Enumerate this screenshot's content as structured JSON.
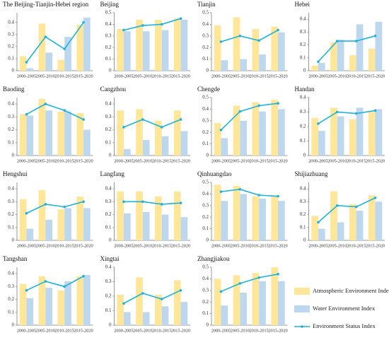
{
  "chart_data": {
    "type": "bar-line",
    "categories": [
      "2000-2005",
      "2005-2010",
      "2010-2015",
      "2015-2020"
    ],
    "series": [
      {
        "name": "Atmospheric Environment Index",
        "color": "#ffe699",
        "kind": "bar"
      },
      {
        "name": "Water Environment Index",
        "color": "#bdd7ee",
        "kind": "bar"
      },
      {
        "name": "Environment Status Index",
        "color": "#1fb2dc",
        "kind": "line"
      }
    ],
    "panels": [
      {
        "title": "The Beijing-Tianjin-Hebei region",
        "ylim": [
          0,
          0.48
        ],
        "yticks": [
          0,
          0.1,
          0.2,
          0.3,
          0.4
        ],
        "values": [
          [
            0.12,
            0.39,
            0.09,
            0.38
          ],
          [
            0.02,
            0.15,
            0.28,
            0.44
          ],
          [
            0.07,
            0.28,
            0.18,
            0.4
          ]
        ]
      },
      {
        "title": "Beijing",
        "ylim": [
          0,
          0.5
        ],
        "yticks": [
          0,
          0.1,
          0.2,
          0.3,
          0.4,
          0.5
        ],
        "values": [
          [
            0.36,
            0.44,
            0.44,
            0.45
          ],
          [
            0.34,
            0.34,
            0.35,
            0.44
          ],
          [
            0.35,
            0.39,
            0.4,
            0.45
          ]
        ]
      },
      {
        "title": "Tianjin",
        "ylim": [
          0,
          0.5
        ],
        "yticks": [
          0,
          0.1,
          0.2,
          0.3,
          0.4,
          0.5
        ],
        "values": [
          [
            0.39,
            0.46,
            0.36,
            0.38
          ],
          [
            0.09,
            0.1,
            0.14,
            0.33
          ],
          [
            0.25,
            0.3,
            0.26,
            0.35
          ]
        ]
      },
      {
        "title": "Hebei",
        "ylim": [
          0,
          0.45
        ],
        "yticks": [
          0,
          0.1,
          0.2,
          0.3,
          0.4
        ],
        "values": [
          [
            0.04,
            0.22,
            0.12,
            0.17
          ],
          [
            0.06,
            0.24,
            0.36,
            0.38
          ],
          [
            0.07,
            0.23,
            0.23,
            0.27
          ]
        ]
      },
      {
        "title": "Baoding",
        "ylim": [
          0,
          0.45
        ],
        "yticks": [
          0,
          0.1,
          0.2,
          0.3,
          0.4
        ],
        "values": [
          [
            0.32,
            0.44,
            0.34,
            0.33
          ],
          [
            0.31,
            0.35,
            0.34,
            0.2
          ],
          [
            0.32,
            0.4,
            0.35,
            0.28
          ]
        ]
      },
      {
        "title": "Cangzhou",
        "ylim": [
          0,
          0.45
        ],
        "yticks": [
          0,
          0.1,
          0.2,
          0.3,
          0.4
        ],
        "values": [
          [
            0.35,
            0.36,
            0.27,
            0.35
          ],
          [
            0.05,
            0.12,
            0.15,
            0.19
          ],
          [
            0.22,
            0.28,
            0.22,
            0.28
          ]
        ]
      },
      {
        "title": "Chengde",
        "ylim": [
          0,
          0.5
        ],
        "yticks": [
          0,
          0.1,
          0.2,
          0.3,
          0.4,
          0.5
        ],
        "values": [
          [
            0.28,
            0.43,
            0.46,
            0.48
          ],
          [
            0.15,
            0.3,
            0.38,
            0.4
          ],
          [
            0.22,
            0.38,
            0.43,
            0.45
          ]
        ]
      },
      {
        "title": "Handan",
        "ylim": [
          0,
          0.4
        ],
        "yticks": [
          0,
          0.1,
          0.2,
          0.3,
          0.4
        ],
        "values": [
          [
            0.26,
            0.33,
            0.25,
            0.3
          ],
          [
            0.17,
            0.27,
            0.33,
            0.32
          ],
          [
            0.22,
            0.3,
            0.29,
            0.31
          ]
        ]
      },
      {
        "title": "Hengshui",
        "ylim": [
          0,
          0.45
        ],
        "yticks": [
          0,
          0.1,
          0.2,
          0.3,
          0.4
        ],
        "values": [
          [
            0.32,
            0.39,
            0.24,
            0.34
          ],
          [
            0.09,
            0.16,
            0.25,
            0.25
          ],
          [
            0.21,
            0.28,
            0.26,
            0.3
          ]
        ]
      },
      {
        "title": "Langfang",
        "ylim": [
          0,
          0.45
        ],
        "yticks": [
          0,
          0.1,
          0.2,
          0.3,
          0.4
        ],
        "values": [
          [
            0.38,
            0.38,
            0.34,
            0.38
          ],
          [
            0.21,
            0.22,
            0.2,
            0.18
          ],
          [
            0.3,
            0.3,
            0.28,
            0.29
          ]
        ]
      },
      {
        "title": "Qinhuangdao",
        "ylim": [
          0,
          0.5
        ],
        "yticks": [
          0,
          0.1,
          0.2,
          0.3,
          0.4,
          0.5
        ],
        "values": [
          [
            0.48,
            0.47,
            0.38,
            0.38
          ],
          [
            0.34,
            0.4,
            0.36,
            0.34
          ],
          [
            0.42,
            0.44,
            0.39,
            0.38
          ]
        ]
      },
      {
        "title": "Shijiazhuang",
        "ylim": [
          0,
          0.45
        ],
        "yticks": [
          0,
          0.1,
          0.2,
          0.3,
          0.4
        ],
        "values": [
          [
            0.19,
            0.38,
            0.28,
            0.35
          ],
          [
            0.09,
            0.14,
            0.23,
            0.3
          ],
          [
            0.14,
            0.27,
            0.26,
            0.33
          ]
        ]
      },
      {
        "title": "Tangshan",
        "ylim": [
          0,
          0.45
        ],
        "yticks": [
          0,
          0.1,
          0.2,
          0.3,
          0.4
        ],
        "values": [
          [
            0.32,
            0.38,
            0.27,
            0.38
          ],
          [
            0.21,
            0.29,
            0.34,
            0.39
          ],
          [
            0.27,
            0.34,
            0.3,
            0.38
          ]
        ]
      },
      {
        "title": "Xingtai",
        "ylim": [
          0,
          0.4
        ],
        "yticks": [
          0,
          0.1,
          0.2,
          0.3,
          0.4
        ],
        "values": [
          [
            0.21,
            0.33,
            0.21,
            0.31
          ],
          [
            0.09,
            0.09,
            0.13,
            0.16
          ],
          [
            0.15,
            0.22,
            0.18,
            0.24
          ]
        ]
      },
      {
        "title": "Zhangjiakou",
        "ylim": [
          0,
          0.5
        ],
        "yticks": [
          0,
          0.1,
          0.2,
          0.3,
          0.4,
          0.5
        ],
        "values": [
          [
            0.4,
            0.43,
            0.45,
            0.5
          ],
          [
            0.17,
            0.28,
            0.38,
            0.38
          ],
          [
            0.29,
            0.36,
            0.41,
            0.44
          ]
        ]
      }
    ]
  }
}
